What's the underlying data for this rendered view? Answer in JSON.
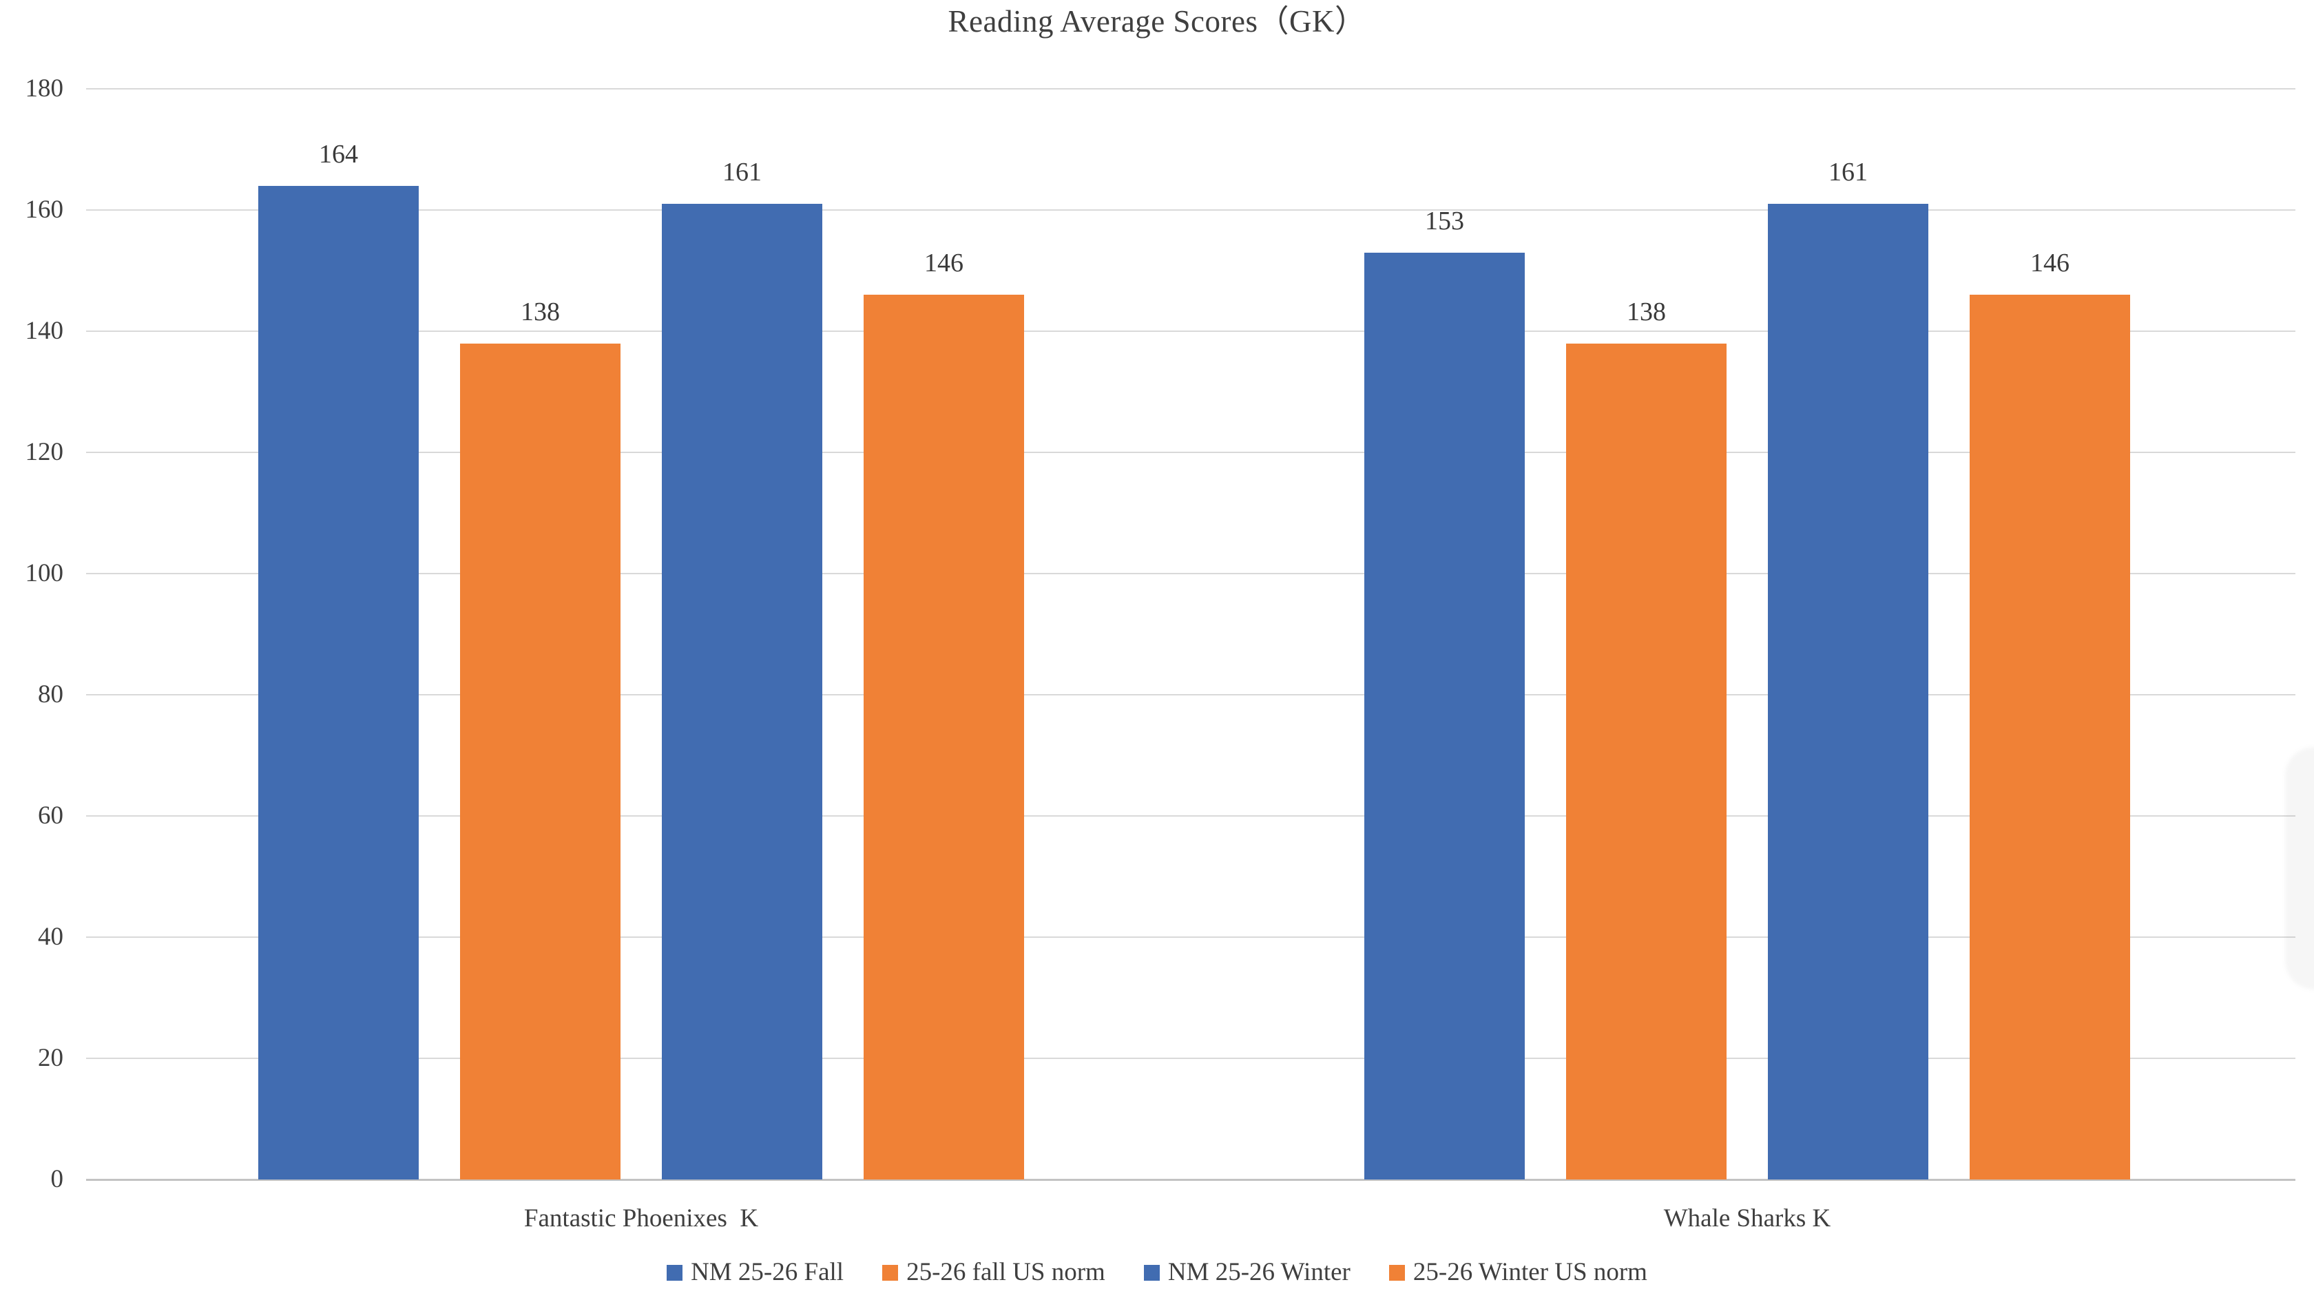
{
  "chart_data": {
    "type": "bar",
    "title": "Reading Average Scores（GK）",
    "categories": [
      "Fantastic Phoenixes  K",
      "Whale Sharks K"
    ],
    "series": [
      {
        "name": "NM 25-26 Fall",
        "color": "#416CB1",
        "values": [
          164,
          153
        ]
      },
      {
        "name": "25-26 fall US norm",
        "color": "#F08136",
        "values": [
          138,
          138
        ]
      },
      {
        "name": "NM 25-26 Winter",
        "color": "#416CB1",
        "values": [
          161,
          161
        ]
      },
      {
        "name": "25-26 Winter US norm",
        "color": "#F08136",
        "values": [
          146,
          146
        ]
      }
    ],
    "ylim": [
      0,
      180
    ],
    "yticks": [
      0,
      20,
      40,
      60,
      80,
      100,
      120,
      140,
      160,
      180
    ],
    "xlabel": "",
    "ylabel": "",
    "grid": true,
    "data_labels": true,
    "legend_position": "bottom",
    "colors": {
      "text": "#3F3F3F",
      "gridline": "#D9D9D9",
      "axis_line": "#C3C3C3",
      "background": "#FFFFFF",
      "series_blue": "#416CB1",
      "series_orange": "#F08136"
    }
  }
}
